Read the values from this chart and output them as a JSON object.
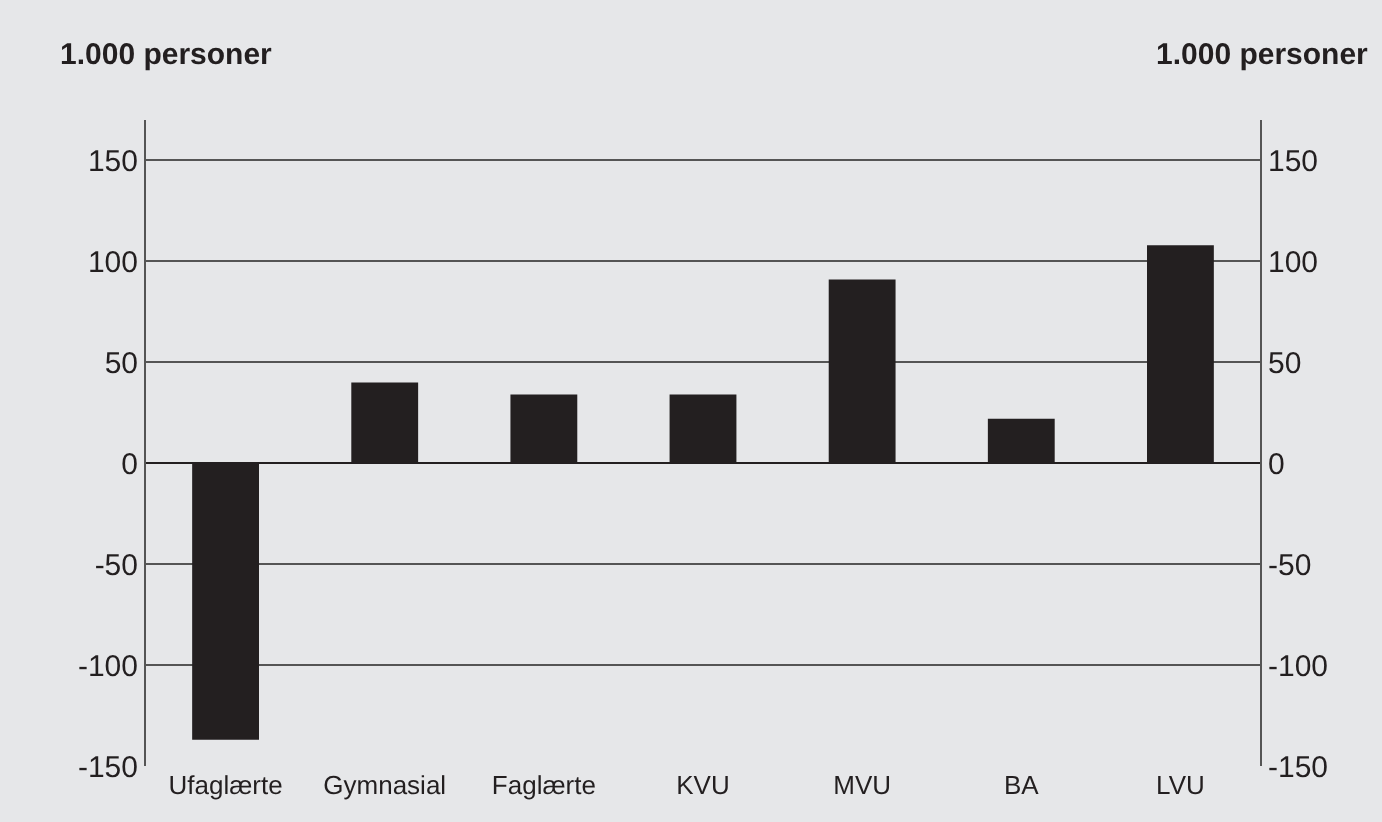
{
  "chart_data": {
    "type": "bar",
    "categories": [
      "Ufaglærte",
      "Gymnasial",
      "Faglærte",
      "KVU",
      "MVU",
      "BA",
      "LVU"
    ],
    "values": [
      -137,
      40,
      34,
      34,
      91,
      22,
      108
    ],
    "color": "#231f20",
    "ylabel": "1.000 personer",
    "y2label": "1.000 personer",
    "ylim": [
      -150,
      170
    ],
    "yticks": [
      -150,
      -100,
      -50,
      0,
      50,
      100,
      150
    ],
    "y2lim": [
      -150,
      170
    ],
    "y2ticks": [
      -150,
      -100,
      -50,
      0,
      50,
      100,
      150
    ],
    "grid": "y",
    "legend": false
  }
}
